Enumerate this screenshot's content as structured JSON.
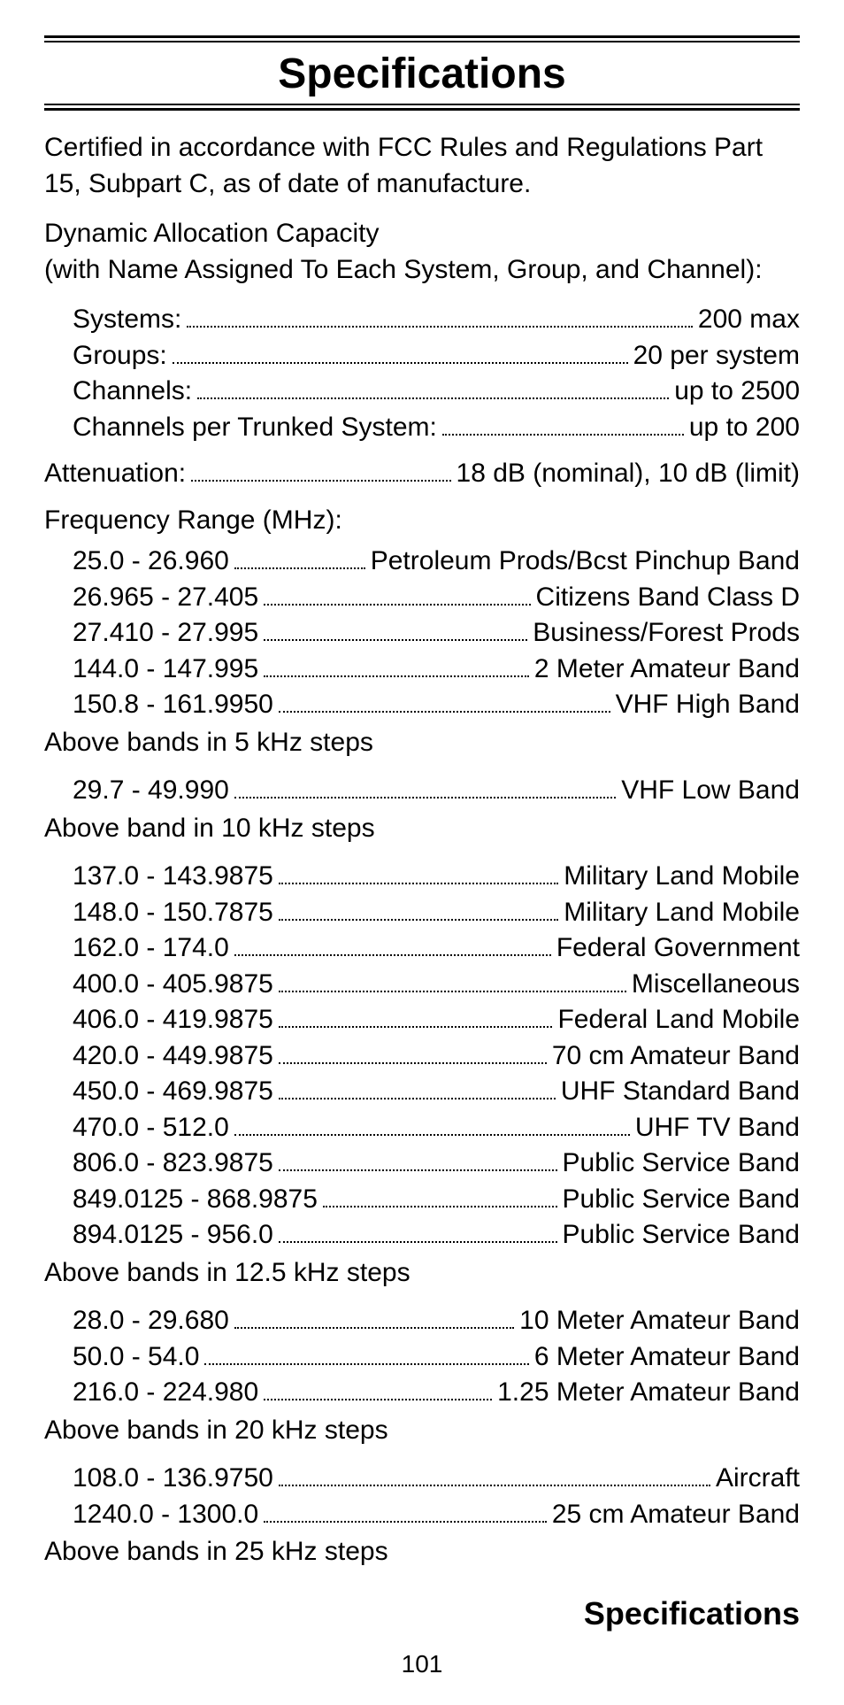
{
  "title": "Specifications",
  "intro": "Certified in accordance with FCC Rules and Regulations Part 15, Subpart C, as of date of manufacture.",
  "dac_heading": "Dynamic Allocation Capacity\n(with Name Assigned To Each System, Group, and Channel):",
  "dac": [
    {
      "l": "Systems:",
      "r": "200 max"
    },
    {
      "l": "Groups:",
      "r": "20 per system"
    },
    {
      "l": "Channels:",
      "r": "up to 2500"
    },
    {
      "l": "Channels per Trunked System:",
      "r": "up to 200"
    }
  ],
  "attenuation": {
    "l": "Attenuation:",
    "r": "18 dB (nominal), 10 dB (limit)"
  },
  "freq_heading": "Frequency Range (MHz):",
  "band_5khz": [
    {
      "l": "25.0 - 26.960",
      "r": "Petroleum Prods/Bcst Pinchup Band"
    },
    {
      "l": "26.965 - 27.405",
      "r": "Citizens Band Class D"
    },
    {
      "l": "27.410 - 27.995",
      "r": "Business/Forest Prods"
    },
    {
      "l": "144.0 - 147.995",
      "r": "2 Meter Amateur Band"
    },
    {
      "l": "150.8 - 161.9950",
      "r": "VHF High Band"
    }
  ],
  "note_5khz": "Above bands in 5 kHz steps",
  "band_10khz": [
    {
      "l": "29.7 - 49.990",
      "r": "VHF Low Band"
    }
  ],
  "note_10khz": "Above band in 10 kHz steps",
  "band_12_5khz": [
    {
      "l": "137.0 - 143.9875",
      "r": "Military Land Mobile"
    },
    {
      "l": "148.0 - 150.7875",
      "r": "Military Land Mobile"
    },
    {
      "l": "162.0 - 174.0",
      "r": "Federal Government"
    },
    {
      "l": "400.0 - 405.9875",
      "r": "Miscellaneous"
    },
    {
      "l": "406.0 - 419.9875",
      "r": "Federal Land Mobile"
    },
    {
      "l": "420.0 - 449.9875",
      "r": "70 cm Amateur Band"
    },
    {
      "l": "450.0 - 469.9875",
      "r": "UHF Standard Band"
    },
    {
      "l": "470.0 - 512.0",
      "r": "UHF TV Band"
    },
    {
      "l": "806.0 - 823.9875",
      "r": "Public Service Band"
    },
    {
      "l": "849.0125 - 868.9875",
      "r": "Public Service Band"
    },
    {
      "l": "894.0125 - 956.0",
      "r": "Public Service Band"
    }
  ],
  "note_12_5khz": "Above bands in 12.5 kHz steps",
  "band_20khz": [
    {
      "l": "28.0 - 29.680",
      "r": "10 Meter Amateur Band"
    },
    {
      "l": "50.0 - 54.0",
      "r": "6 Meter Amateur Band"
    },
    {
      "l": "216.0 - 224.980",
      "r": "1.25 Meter Amateur Band"
    }
  ],
  "note_20khz": "Above bands in 20 kHz steps",
  "band_25khz": [
    {
      "l": "108.0 - 136.9750",
      "r": "Aircraft"
    },
    {
      "l": "1240.0 - 1300.0",
      "r": "25 cm Amateur Band"
    }
  ],
  "note_25khz": "Above bands in 25 kHz steps",
  "section_footer": "Specifications",
  "page_number": "101"
}
